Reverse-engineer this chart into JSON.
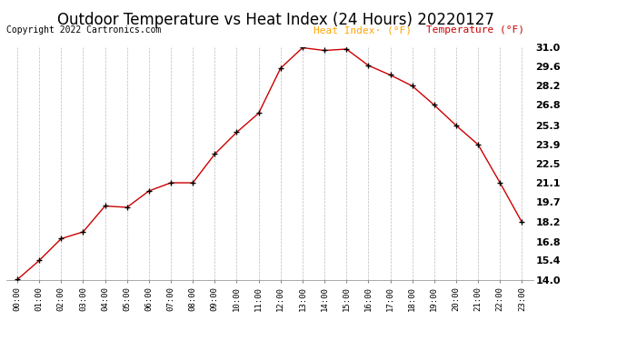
{
  "title": "Outdoor Temperature vs Heat Index (24 Hours) 20220127",
  "copyright": "Copyright 2022 Cartronics.com",
  "legend_heat": "Heat Index· (°F)",
  "legend_temp": "Temperature (°F)",
  "hours": [
    "00:00",
    "01:00",
    "02:00",
    "03:00",
    "04:00",
    "05:00",
    "06:00",
    "07:00",
    "08:00",
    "09:00",
    "10:00",
    "11:00",
    "12:00",
    "13:00",
    "14:00",
    "15:00",
    "16:00",
    "17:00",
    "18:00",
    "19:00",
    "20:00",
    "21:00",
    "22:00",
    "23:00"
  ],
  "temperature": [
    14.0,
    15.4,
    17.0,
    17.5,
    19.4,
    19.3,
    20.5,
    21.1,
    21.1,
    23.2,
    24.8,
    26.2,
    29.5,
    31.0,
    30.8,
    30.9,
    29.7,
    29.0,
    28.2,
    26.8,
    25.3,
    23.9,
    21.1,
    18.2
  ],
  "ylim_min": 14.0,
  "ylim_max": 31.0,
  "yticks": [
    14.0,
    15.4,
    16.8,
    18.2,
    19.7,
    21.1,
    22.5,
    23.9,
    25.3,
    26.8,
    28.2,
    29.6,
    31.0
  ],
  "line_color": "#cc0000",
  "marker": "+",
  "marker_color": "#000000",
  "grid_color": "#aaaaaa",
  "title_fontsize": 12,
  "copyright_fontsize": 7,
  "legend_fontsize": 8,
  "background_color": "#ffffff"
}
